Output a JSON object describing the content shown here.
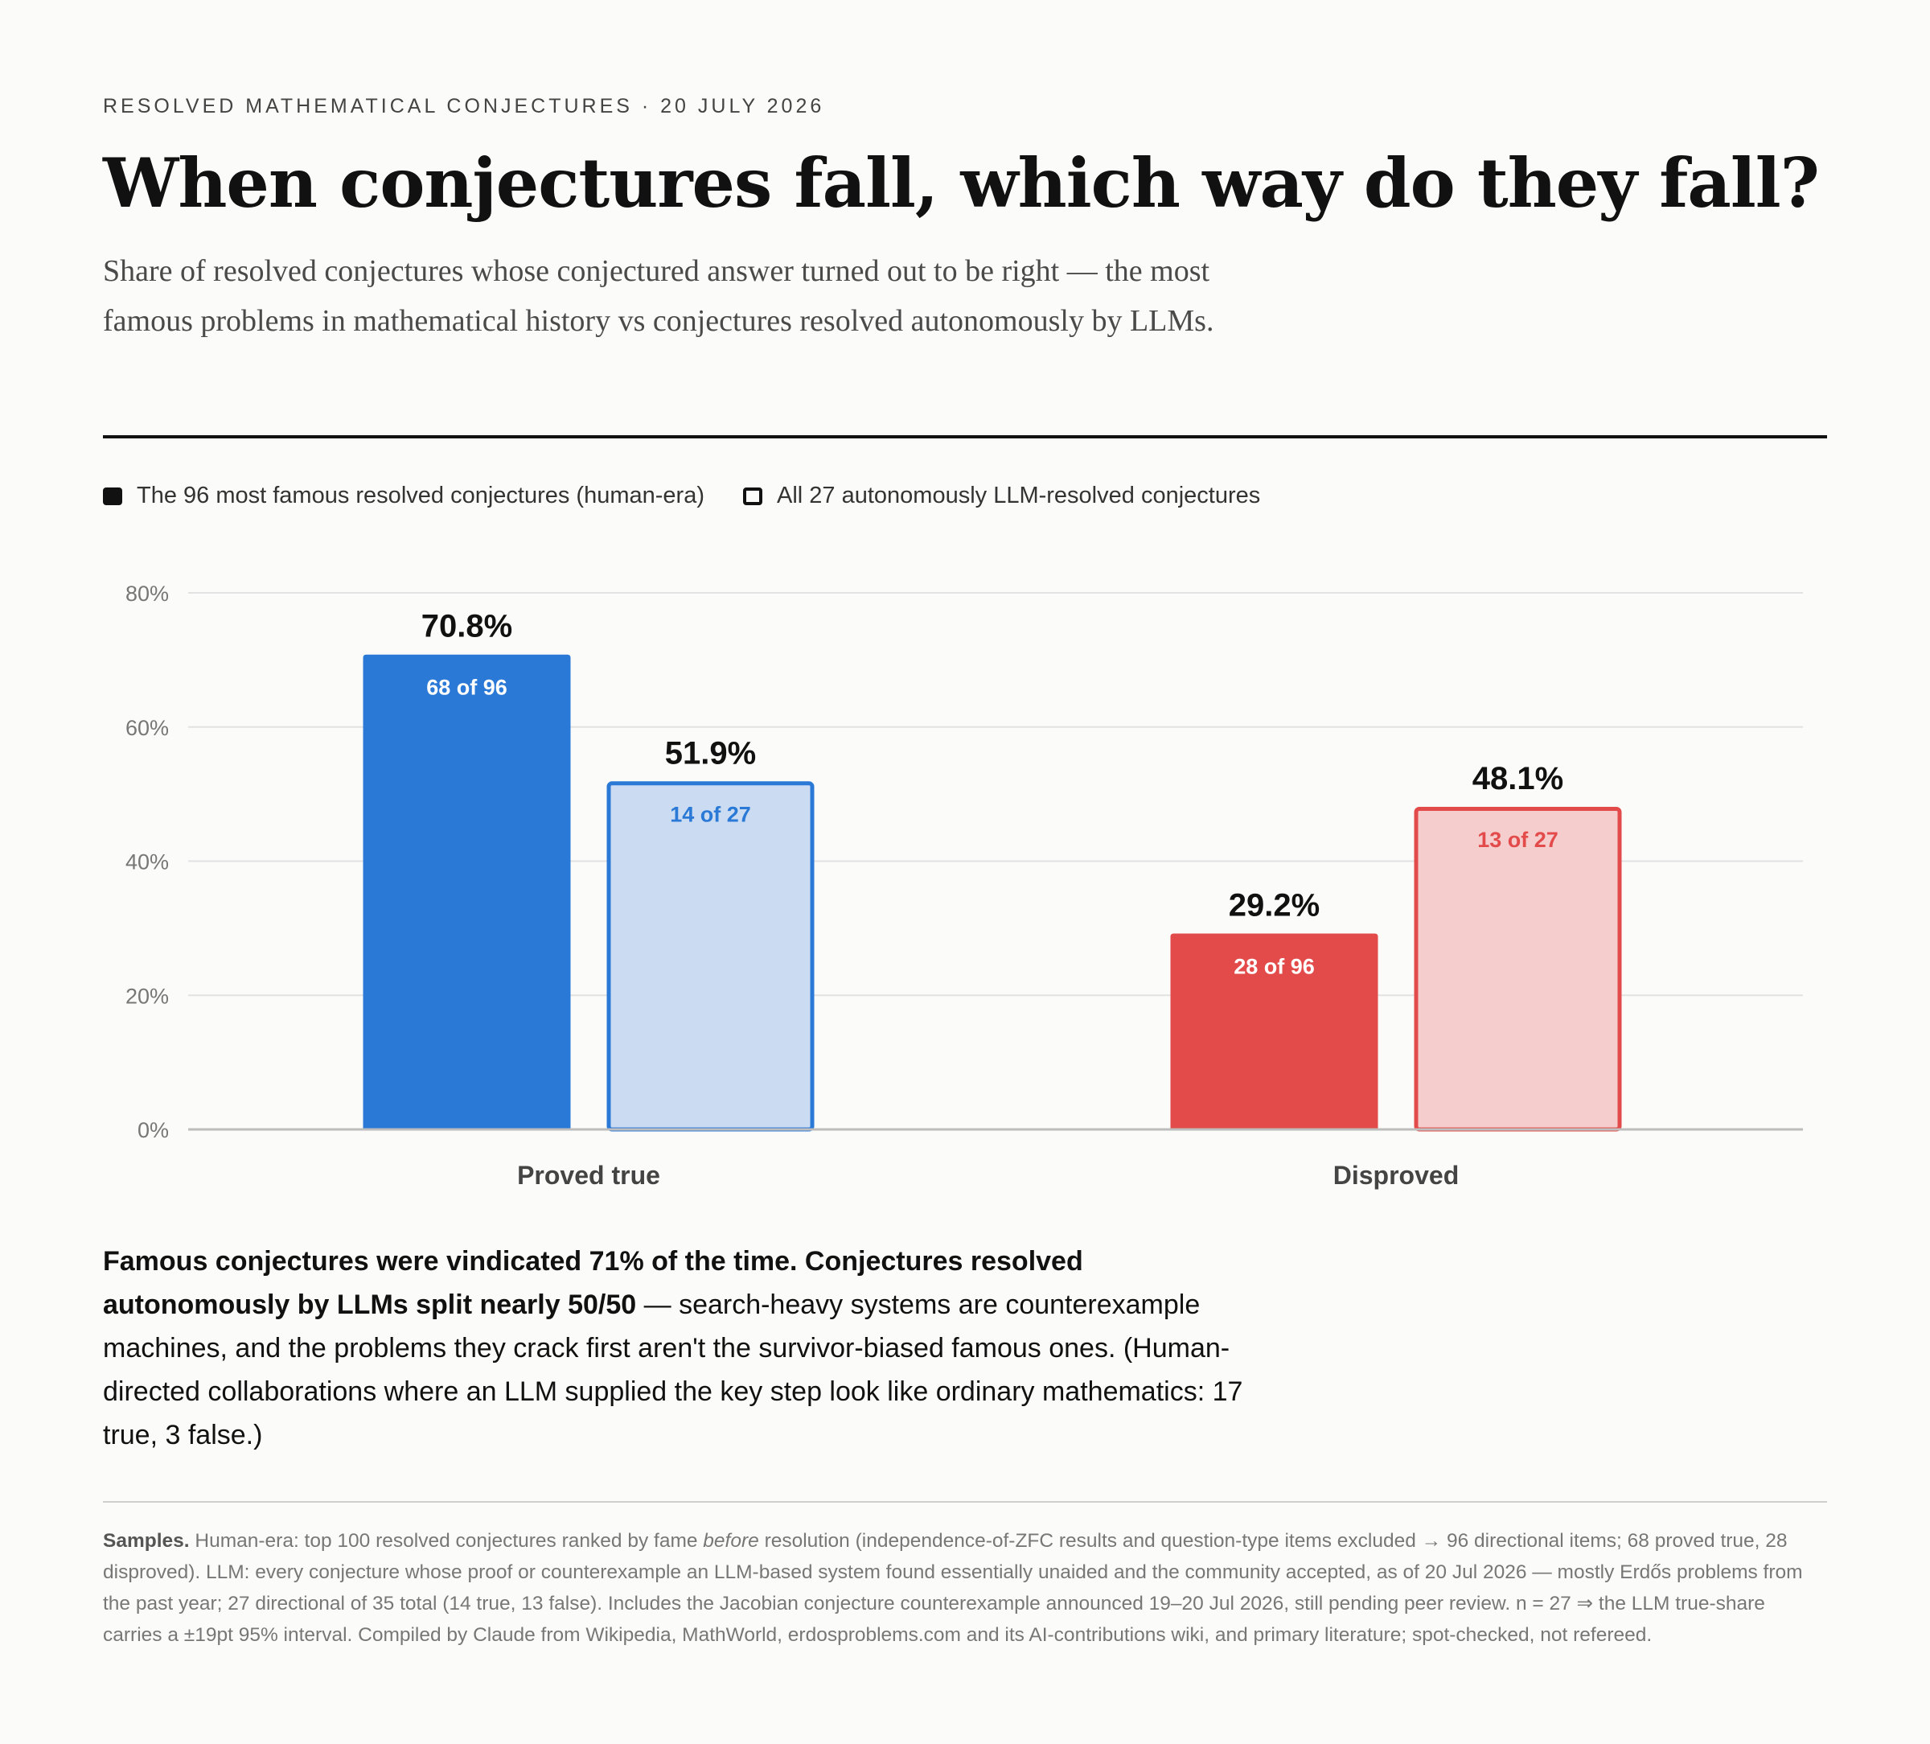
{
  "kicker": "RESOLVED MATHEMATICAL CONJECTURES · 20 JULY 2026",
  "title": "When conjectures fall, which way do they fall?",
  "subtitle": "Share of resolved conjectures whose conjectured answer turned out to be right — the most famous problems in mathematical history vs conjectures resolved autonomously by LLMs.",
  "legend": {
    "human": "The 96 most famous resolved conjectures (human-era)",
    "llm": "All 27 autonomously LLM-resolved conjectures"
  },
  "chart_data": {
    "type": "bar",
    "categories": [
      "Proved true",
      "Disproved"
    ],
    "series": [
      {
        "name": "The 96 most famous resolved conjectures (human-era)",
        "values": [
          70.8,
          29.2
        ],
        "value_labels": [
          "70.8%",
          "29.2%"
        ],
        "count_labels": [
          "68 of 96",
          "28 of 96"
        ],
        "style": "solid"
      },
      {
        "name": "All 27 autonomously LLM-resolved conjectures",
        "values": [
          51.9,
          48.1
        ],
        "value_labels": [
          "51.9%",
          "48.1%"
        ],
        "count_labels": [
          "14 of 27",
          "13 of 27"
        ],
        "style": "outline"
      }
    ],
    "category_colors": {
      "Proved true": {
        "solid": "#2b79d6",
        "light": "#cbdcf2",
        "text": "#2b79d6"
      },
      "Disproved": {
        "solid": "#e34a4a",
        "light": "#f6cdcd",
        "text": "#e34a4a"
      }
    },
    "yticks": [
      "0%",
      "20%",
      "40%",
      "60%",
      "80%"
    ],
    "ylim": [
      0,
      80
    ],
    "grid": true,
    "legend_position": "top-left"
  },
  "takeaway": {
    "bold": "Famous conjectures were vindicated 71% of the time. Conjectures resolved autonomously by LLMs split nearly 50/50",
    "rest": " — search-heavy systems are counterexample machines, and the problems they crack first aren't the survivor-biased famous ones. (Human-directed collaborations where an LLM supplied the key step look like ordinary mathematics: 17 true, 3 false.)"
  },
  "notes": {
    "label": "Samples.",
    "part1": " Human-era: top 100 resolved conjectures ranked by fame ",
    "emph": "before",
    "part2": " resolution (independence-of-ZFC results and question-type items excluded → 96 directional items; 68 proved true, 28 disproved). LLM: every conjecture whose proof or counterexample an LLM-based system found essentially unaided and the community accepted, as of 20 Jul 2026 — mostly Erdős problems from the past year; 27 directional of 35 total (14 true, 13 false). Includes the Jacobian conjecture counterexample announced 19–20 Jul 2026, still pending peer review. n = 27 ⇒ the LLM true-share carries a ±19pt 95% interval. Compiled by Claude from Wikipedia, MathWorld, erdosproblems.com and its AI-contributions wiki, and primary literature; spot-checked, not refereed."
  }
}
